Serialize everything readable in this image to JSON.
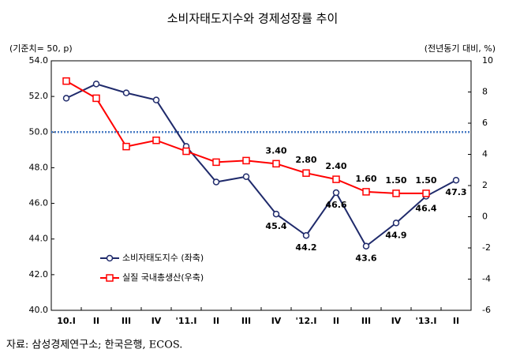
{
  "chart_data": {
    "type": "line",
    "title": "소비자태도지수와 경제성장률 추이",
    "ylabel": "(기준치= 50, p)",
    "y2label": "(전년동기 대비, %)",
    "source": "자료: 삼성경제연구소; 한국은행, ECOS.",
    "categories": [
      "10.I",
      "II",
      "III",
      "IV",
      "'11.I",
      "II",
      "III",
      "IV",
      "'12.I",
      "II",
      "III",
      "IV",
      "'13.I",
      "II"
    ],
    "series": [
      {
        "name": "소비자태도지수 (좌축)",
        "color": "#1f2a6b",
        "marker": "circle",
        "axis": "y",
        "values": [
          51.9,
          52.7,
          52.2,
          51.8,
          49.2,
          47.2,
          47.5,
          45.4,
          44.2,
          46.6,
          43.6,
          44.9,
          46.4,
          47.3
        ],
        "value_labels": [
          null,
          null,
          null,
          null,
          null,
          null,
          null,
          "45.4",
          "44.2",
          "46.6",
          "43.6",
          "44.9",
          "46.4",
          "47.3"
        ]
      },
      {
        "name": "실질 국내총생산(우축)",
        "color": "#ff0000",
        "marker": "square",
        "axis": "y2",
        "values": [
          8.7,
          7.6,
          4.5,
          4.9,
          4.2,
          3.5,
          3.6,
          3.4,
          2.8,
          2.4,
          1.6,
          1.5,
          1.5,
          null
        ],
        "value_labels": [
          null,
          null,
          null,
          null,
          null,
          null,
          null,
          "3.40",
          "2.80",
          "2.40",
          "1.60",
          "1.50",
          "1.50",
          null
        ]
      }
    ],
    "ylim": [
      40,
      54
    ],
    "yticks": [
      {
        "value": 40,
        "label": "40.0"
      },
      {
        "value": 42,
        "label": "42.0"
      },
      {
        "value": 44,
        "label": "44.0"
      },
      {
        "value": 46,
        "label": "46.0"
      },
      {
        "value": 48,
        "label": "48.0"
      },
      {
        "value": 50,
        "label": "50.0"
      },
      {
        "value": 52,
        "label": "52.0"
      },
      {
        "value": 54,
        "label": "54.0"
      }
    ],
    "y2lim": [
      -6,
      10
    ],
    "y2ticks": [
      -6,
      -4,
      -2,
      0,
      2,
      4,
      6,
      8,
      10
    ],
    "reference_line": 50,
    "legend": "lower left"
  }
}
